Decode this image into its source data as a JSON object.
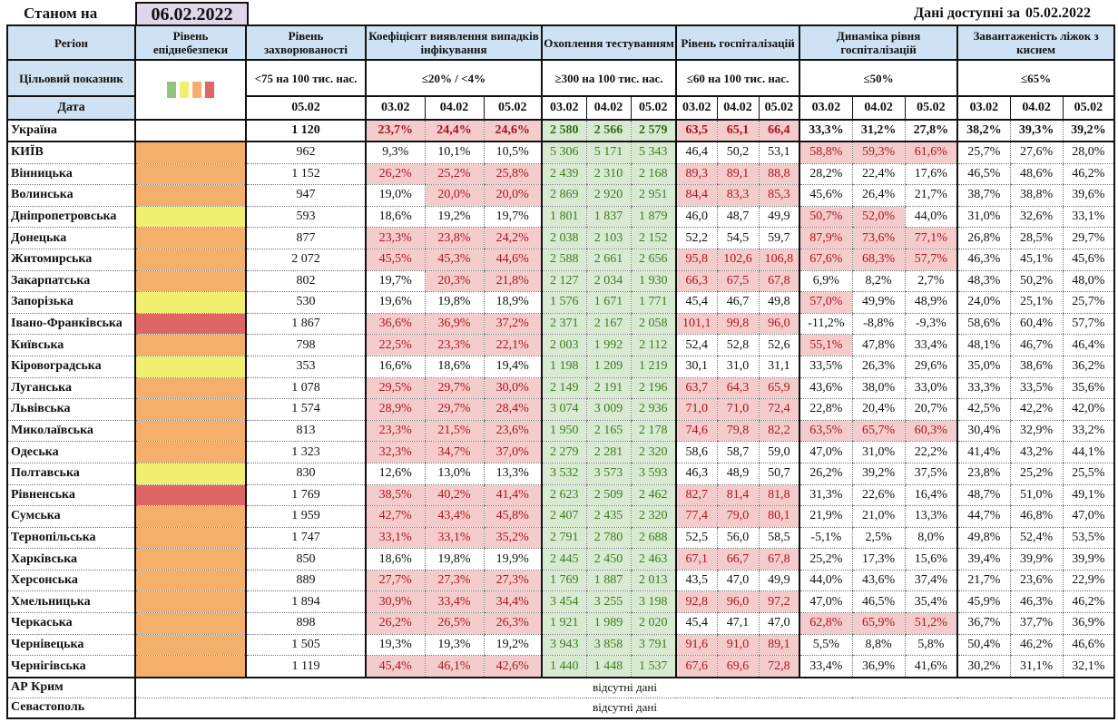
{
  "header": {
    "as_of_label": "Станом на",
    "as_of_date": "06.02.2022",
    "available_label": "Дані доступні за",
    "available_date": "05.02.2022"
  },
  "columns": {
    "region": "Регіон",
    "epi_level": "Рівень епіднебезпеки",
    "incidence": "Рівень захворюваності",
    "detection": "Коефіцієнт виявлення випадків інфікування",
    "testing": "Охоплення тестуванням",
    "hospitalization": "Рівень госпіталізацій",
    "hosp_dynamics": "Динаміка рівня госпіталізацій",
    "oxygen_beds": "Завантаженість ліжок з киснем"
  },
  "targets": {
    "label": "Цільовий показник",
    "incidence": "<75 на 100 тис. нас.",
    "detection": "≤20% / <4%",
    "testing": "≥300 на 100 тис. нас.",
    "hospitalization": "≤60 на 100 тис. нас.",
    "hosp_dynamics": "≤50%",
    "oxygen_beds": "≤65%",
    "legend_colors": [
      "#93c47d",
      "#f1ef6f",
      "#f4b06a",
      "#e06666"
    ]
  },
  "dates": {
    "label": "Дата",
    "incidence": "05.02",
    "d1": "03.02",
    "d2": "04.02",
    "d3": "05.02"
  },
  "level_colors": {
    "orange": "#f4b06a",
    "yellow": "#f1ef6f",
    "red": "#e06666"
  },
  "ukraine": {
    "name": "Україна",
    "incidence": "1 120",
    "detection": [
      "23,7%",
      "24,4%",
      "24,6%"
    ],
    "testing": [
      "2 580",
      "2 566",
      "2 579"
    ],
    "hospitalization": [
      "63,5",
      "65,1",
      "66,4"
    ],
    "hosp_dynamics": [
      "33,3%",
      "31,2%",
      "27,8%"
    ],
    "oxygen_beds": [
      "38,2%",
      "39,3%",
      "39,2%"
    ]
  },
  "regions": [
    {
      "name": "КИЇВ",
      "level": "orange",
      "incidence": "962",
      "det": [
        "9,3%",
        "10,1%",
        "10,5%"
      ],
      "det_h": [
        0,
        0,
        0
      ],
      "test": [
        "5 306",
        "5 171",
        "5 343"
      ],
      "hosp": [
        "46,4",
        "50,2",
        "53,1"
      ],
      "hosp_h": [
        0,
        0,
        0
      ],
      "dyn": [
        "58,8%",
        "59,3%",
        "61,6%"
      ],
      "dyn_h": [
        1,
        1,
        1
      ],
      "beds": [
        "25,7%",
        "27,6%",
        "28,0%"
      ]
    },
    {
      "name": "Вінницька",
      "level": "orange",
      "incidence": "1 152",
      "det": [
        "26,2%",
        "25,2%",
        "25,8%"
      ],
      "det_h": [
        1,
        1,
        1
      ],
      "test": [
        "2 439",
        "2 310",
        "2 168"
      ],
      "hosp": [
        "89,3",
        "89,1",
        "88,8"
      ],
      "hosp_h": [
        1,
        1,
        1
      ],
      "dyn": [
        "28,2%",
        "22,4%",
        "17,6%"
      ],
      "dyn_h": [
        0,
        0,
        0
      ],
      "beds": [
        "46,5%",
        "48,6%",
        "46,2%"
      ]
    },
    {
      "name": "Волинська",
      "level": "orange",
      "incidence": "947",
      "det": [
        "19,0%",
        "20,0%",
        "20,0%"
      ],
      "det_h": [
        0,
        1,
        1
      ],
      "test": [
        "2 869",
        "2 920",
        "2 951"
      ],
      "hosp": [
        "84,4",
        "83,3",
        "85,3"
      ],
      "hosp_h": [
        1,
        1,
        1
      ],
      "dyn": [
        "45,6%",
        "26,4%",
        "21,7%"
      ],
      "dyn_h": [
        0,
        0,
        0
      ],
      "beds": [
        "38,7%",
        "38,8%",
        "39,6%"
      ]
    },
    {
      "name": "Дніпропетровська",
      "level": "yellow",
      "incidence": "593",
      "det": [
        "18,6%",
        "19,2%",
        "19,7%"
      ],
      "det_h": [
        0,
        0,
        0
      ],
      "test": [
        "1 801",
        "1 837",
        "1 879"
      ],
      "hosp": [
        "46,0",
        "48,7",
        "49,9"
      ],
      "hosp_h": [
        0,
        0,
        0
      ],
      "dyn": [
        "50,7%",
        "52,0%",
        "44,0%"
      ],
      "dyn_h": [
        1,
        1,
        0
      ],
      "beds": [
        "31,0%",
        "32,6%",
        "33,1%"
      ]
    },
    {
      "name": "Донецька",
      "level": "orange",
      "incidence": "877",
      "det": [
        "23,3%",
        "23,8%",
        "24,2%"
      ],
      "det_h": [
        1,
        1,
        1
      ],
      "test": [
        "2 038",
        "2 103",
        "2 152"
      ],
      "hosp": [
        "52,2",
        "54,5",
        "59,7"
      ],
      "hosp_h": [
        0,
        0,
        0
      ],
      "dyn": [
        "87,9%",
        "73,6%",
        "77,1%"
      ],
      "dyn_h": [
        1,
        1,
        1
      ],
      "beds": [
        "26,8%",
        "28,5%",
        "29,7%"
      ]
    },
    {
      "name": "Житомирська",
      "level": "orange",
      "incidence": "2 072",
      "det": [
        "45,5%",
        "45,3%",
        "44,6%"
      ],
      "det_h": [
        1,
        1,
        1
      ],
      "test": [
        "2 588",
        "2 661",
        "2 656"
      ],
      "hosp": [
        "95,8",
        "102,6",
        "106,8"
      ],
      "hosp_h": [
        1,
        1,
        1
      ],
      "dyn": [
        "67,6%",
        "68,3%",
        "57,7%"
      ],
      "dyn_h": [
        1,
        1,
        1
      ],
      "beds": [
        "46,3%",
        "45,1%",
        "45,6%"
      ]
    },
    {
      "name": "Закарпатська",
      "level": "orange",
      "incidence": "802",
      "det": [
        "19,7%",
        "20,3%",
        "21,8%"
      ],
      "det_h": [
        0,
        1,
        1
      ],
      "test": [
        "2 127",
        "2 034",
        "1 930"
      ],
      "hosp": [
        "66,3",
        "67,5",
        "67,8"
      ],
      "hosp_h": [
        1,
        1,
        1
      ],
      "dyn": [
        "6,9%",
        "8,2%",
        "2,7%"
      ],
      "dyn_h": [
        0,
        0,
        0
      ],
      "beds": [
        "48,3%",
        "50,2%",
        "48,0%"
      ]
    },
    {
      "name": "Запорізька",
      "level": "yellow",
      "incidence": "530",
      "det": [
        "19,6%",
        "19,8%",
        "18,9%"
      ],
      "det_h": [
        0,
        0,
        0
      ],
      "test": [
        "1 576",
        "1 671",
        "1 771"
      ],
      "hosp": [
        "45,4",
        "46,7",
        "49,8"
      ],
      "hosp_h": [
        0,
        0,
        0
      ],
      "dyn": [
        "57,0%",
        "49,9%",
        "48,9%"
      ],
      "dyn_h": [
        1,
        0,
        0
      ],
      "beds": [
        "24,0%",
        "25,1%",
        "25,7%"
      ]
    },
    {
      "name": "Івано-Франківська",
      "level": "red",
      "incidence": "1 867",
      "det": [
        "36,6%",
        "36,9%",
        "37,2%"
      ],
      "det_h": [
        1,
        1,
        1
      ],
      "test": [
        "2 371",
        "2 167",
        "2 058"
      ],
      "hosp": [
        "101,1",
        "99,8",
        "96,0"
      ],
      "hosp_h": [
        1,
        1,
        1
      ],
      "dyn": [
        "-11,2%",
        "-8,8%",
        "-9,3%"
      ],
      "dyn_h": [
        0,
        0,
        0
      ],
      "beds": [
        "58,6%",
        "60,4%",
        "57,7%"
      ]
    },
    {
      "name": "Київська",
      "level": "orange",
      "incidence": "798",
      "det": [
        "22,5%",
        "23,3%",
        "22,1%"
      ],
      "det_h": [
        1,
        1,
        1
      ],
      "test": [
        "2 003",
        "1 992",
        "2 112"
      ],
      "hosp": [
        "52,4",
        "52,8",
        "52,6"
      ],
      "hosp_h": [
        0,
        0,
        0
      ],
      "dyn": [
        "55,1%",
        "47,8%",
        "33,4%"
      ],
      "dyn_h": [
        1,
        0,
        0
      ],
      "beds": [
        "48,1%",
        "46,7%",
        "46,4%"
      ]
    },
    {
      "name": "Кіровоградська",
      "level": "yellow",
      "incidence": "353",
      "det": [
        "16,6%",
        "18,6%",
        "19,4%"
      ],
      "det_h": [
        0,
        0,
        0
      ],
      "test": [
        "1 198",
        "1 209",
        "1 219"
      ],
      "hosp": [
        "30,1",
        "31,0",
        "31,1"
      ],
      "hosp_h": [
        0,
        0,
        0
      ],
      "dyn": [
        "33,5%",
        "26,3%",
        "29,6%"
      ],
      "dyn_h": [
        0,
        0,
        0
      ],
      "beds": [
        "35,0%",
        "38,6%",
        "36,2%"
      ]
    },
    {
      "name": "Луганська",
      "level": "orange",
      "incidence": "1 078",
      "det": [
        "29,5%",
        "29,7%",
        "30,0%"
      ],
      "det_h": [
        1,
        1,
        1
      ],
      "test": [
        "2 149",
        "2 191",
        "2 196"
      ],
      "hosp": [
        "63,7",
        "64,3",
        "65,9"
      ],
      "hosp_h": [
        1,
        1,
        1
      ],
      "dyn": [
        "43,6%",
        "38,0%",
        "33,0%"
      ],
      "dyn_h": [
        0,
        0,
        0
      ],
      "beds": [
        "33,3%",
        "33,5%",
        "35,6%"
      ]
    },
    {
      "name": "Львівська",
      "level": "orange",
      "incidence": "1 574",
      "det": [
        "28,9%",
        "29,7%",
        "28,4%"
      ],
      "det_h": [
        1,
        1,
        1
      ],
      "test": [
        "3 074",
        "3 009",
        "2 936"
      ],
      "hosp": [
        "71,0",
        "71,0",
        "72,4"
      ],
      "hosp_h": [
        1,
        1,
        1
      ],
      "dyn": [
        "22,8%",
        "20,4%",
        "20,7%"
      ],
      "dyn_h": [
        0,
        0,
        0
      ],
      "beds": [
        "42,5%",
        "42,2%",
        "42,0%"
      ]
    },
    {
      "name": "Миколаївська",
      "level": "orange",
      "incidence": "813",
      "det": [
        "23,3%",
        "21,5%",
        "23,6%"
      ],
      "det_h": [
        1,
        1,
        1
      ],
      "test": [
        "1 950",
        "2 165",
        "2 178"
      ],
      "hosp": [
        "74,6",
        "79,8",
        "82,2"
      ],
      "hosp_h": [
        1,
        1,
        1
      ],
      "dyn": [
        "63,5%",
        "65,7%",
        "60,3%"
      ],
      "dyn_h": [
        1,
        1,
        1
      ],
      "beds": [
        "30,4%",
        "32,9%",
        "33,2%"
      ]
    },
    {
      "name": "Одеська",
      "level": "orange",
      "incidence": "1 323",
      "det": [
        "32,3%",
        "34,7%",
        "37,0%"
      ],
      "det_h": [
        1,
        1,
        1
      ],
      "test": [
        "2 279",
        "2 281",
        "2 320"
      ],
      "hosp": [
        "58,6",
        "58,7",
        "59,0"
      ],
      "hosp_h": [
        0,
        0,
        0
      ],
      "dyn": [
        "47,0%",
        "31,0%",
        "22,2%"
      ],
      "dyn_h": [
        0,
        0,
        0
      ],
      "beds": [
        "41,4%",
        "43,2%",
        "44,1%"
      ]
    },
    {
      "name": "Полтавська",
      "level": "yellow",
      "incidence": "830",
      "det": [
        "12,6%",
        "13,0%",
        "13,3%"
      ],
      "det_h": [
        0,
        0,
        0
      ],
      "test": [
        "3 532",
        "3 573",
        "3 593"
      ],
      "hosp": [
        "46,3",
        "48,9",
        "50,7"
      ],
      "hosp_h": [
        0,
        0,
        0
      ],
      "dyn": [
        "26,2%",
        "39,2%",
        "37,5%"
      ],
      "dyn_h": [
        0,
        0,
        0
      ],
      "beds": [
        "23,8%",
        "25,2%",
        "25,5%"
      ]
    },
    {
      "name": "Рівненська",
      "level": "red",
      "incidence": "1 769",
      "det": [
        "38,5%",
        "40,2%",
        "41,4%"
      ],
      "det_h": [
        1,
        1,
        1
      ],
      "test": [
        "2 623",
        "2 509",
        "2 462"
      ],
      "hosp": [
        "82,7",
        "81,4",
        "81,8"
      ],
      "hosp_h": [
        1,
        1,
        1
      ],
      "dyn": [
        "31,3%",
        "22,6%",
        "16,4%"
      ],
      "dyn_h": [
        0,
        0,
        0
      ],
      "beds": [
        "48,7%",
        "51,0%",
        "49,1%"
      ]
    },
    {
      "name": "Сумська",
      "level": "orange",
      "incidence": "1 959",
      "det": [
        "42,7%",
        "43,4%",
        "45,8%"
      ],
      "det_h": [
        1,
        1,
        1
      ],
      "test": [
        "2 407",
        "2 435",
        "2 320"
      ],
      "hosp": [
        "77,4",
        "79,0",
        "80,1"
      ],
      "hosp_h": [
        1,
        1,
        1
      ],
      "dyn": [
        "21,9%",
        "21,0%",
        "13,3%"
      ],
      "dyn_h": [
        0,
        0,
        0
      ],
      "beds": [
        "44,7%",
        "46,8%",
        "47,0%"
      ]
    },
    {
      "name": "Тернопільська",
      "level": "orange",
      "incidence": "1 747",
      "det": [
        "33,1%",
        "33,1%",
        "35,2%"
      ],
      "det_h": [
        1,
        1,
        1
      ],
      "test": [
        "2 791",
        "2 780",
        "2 688"
      ],
      "hosp": [
        "52,5",
        "56,0",
        "58,5"
      ],
      "hosp_h": [
        0,
        0,
        0
      ],
      "dyn": [
        "-5,1%",
        "2,5%",
        "8,0%"
      ],
      "dyn_h": [
        0,
        0,
        0
      ],
      "beds": [
        "49,8%",
        "52,4%",
        "53,5%"
      ]
    },
    {
      "name": "Харківська",
      "level": "orange",
      "incidence": "850",
      "det": [
        "18,6%",
        "19,8%",
        "19,9%"
      ],
      "det_h": [
        0,
        0,
        0
      ],
      "test": [
        "2 445",
        "2 450",
        "2 463"
      ],
      "hosp": [
        "67,1",
        "66,7",
        "67,8"
      ],
      "hosp_h": [
        1,
        1,
        1
      ],
      "dyn": [
        "25,2%",
        "17,3%",
        "15,6%"
      ],
      "dyn_h": [
        0,
        0,
        0
      ],
      "beds": [
        "39,4%",
        "39,9%",
        "39,9%"
      ]
    },
    {
      "name": "Херсонська",
      "level": "orange",
      "incidence": "889",
      "det": [
        "27,7%",
        "27,3%",
        "27,3%"
      ],
      "det_h": [
        1,
        1,
        1
      ],
      "test": [
        "1 769",
        "1 887",
        "2 013"
      ],
      "hosp": [
        "43,5",
        "47,0",
        "49,9"
      ],
      "hosp_h": [
        0,
        0,
        0
      ],
      "dyn": [
        "44,0%",
        "43,6%",
        "37,4%"
      ],
      "dyn_h": [
        0,
        0,
        0
      ],
      "beds": [
        "21,7%",
        "23,6%",
        "22,9%"
      ]
    },
    {
      "name": "Хмельницька",
      "level": "orange",
      "incidence": "1 894",
      "det": [
        "30,9%",
        "33,4%",
        "34,4%"
      ],
      "det_h": [
        1,
        1,
        1
      ],
      "test": [
        "3 454",
        "3 255",
        "3 198"
      ],
      "hosp": [
        "92,8",
        "96,0",
        "97,2"
      ],
      "hosp_h": [
        1,
        1,
        1
      ],
      "dyn": [
        "47,0%",
        "46,5%",
        "35,4%"
      ],
      "dyn_h": [
        0,
        0,
        0
      ],
      "beds": [
        "45,9%",
        "46,3%",
        "46,2%"
      ]
    },
    {
      "name": "Черкаська",
      "level": "orange",
      "incidence": "898",
      "det": [
        "26,2%",
        "26,5%",
        "26,3%"
      ],
      "det_h": [
        1,
        1,
        1
      ],
      "test": [
        "1 921",
        "1 989",
        "2 020"
      ],
      "hosp": [
        "45,4",
        "47,1",
        "47,0"
      ],
      "hosp_h": [
        0,
        0,
        0
      ],
      "dyn": [
        "62,8%",
        "65,9%",
        "51,2%"
      ],
      "dyn_h": [
        1,
        1,
        1
      ],
      "beds": [
        "36,7%",
        "37,7%",
        "36,9%"
      ]
    },
    {
      "name": "Чернівецька",
      "level": "orange",
      "incidence": "1 505",
      "det": [
        "19,3%",
        "19,3%",
        "19,2%"
      ],
      "det_h": [
        0,
        0,
        0
      ],
      "test": [
        "3 943",
        "3 858",
        "3 791"
      ],
      "hosp": [
        "91,6",
        "91,0",
        "89,1"
      ],
      "hosp_h": [
        1,
        1,
        1
      ],
      "dyn": [
        "5,5%",
        "8,8%",
        "5,8%"
      ],
      "dyn_h": [
        0,
        0,
        0
      ],
      "beds": [
        "50,4%",
        "46,2%",
        "46,6%"
      ]
    },
    {
      "name": "Чернігівська",
      "level": "orange",
      "incidence": "1 119",
      "det": [
        "45,4%",
        "46,1%",
        "42,6%"
      ],
      "det_h": [
        1,
        1,
        1
      ],
      "test": [
        "1 440",
        "1 448",
        "1 537"
      ],
      "hosp": [
        "67,6",
        "69,6",
        "72,8"
      ],
      "hosp_h": [
        1,
        1,
        1
      ],
      "dyn": [
        "33,4%",
        "36,9%",
        "41,6%"
      ],
      "dyn_h": [
        0,
        0,
        0
      ],
      "beds": [
        "30,2%",
        "31,1%",
        "32,1%"
      ]
    }
  ],
  "no_data_regions": [
    {
      "name": "АР Крим",
      "note": "відсутні дані"
    },
    {
      "name": "Севастополь",
      "note": "відсутні дані"
    }
  ]
}
